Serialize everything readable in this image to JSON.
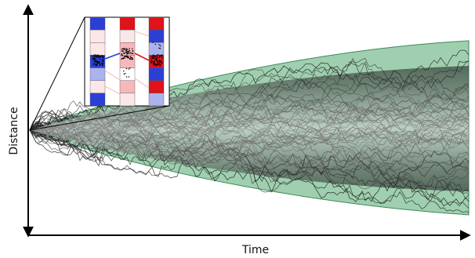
{
  "figure": {
    "xlabel": "Time",
    "ylabel": "Distance",
    "colors": {
      "envelope_fill": "#7fbf94",
      "envelope_edge": "#3c8a57",
      "trajectory_dark": "#000000",
      "axis": "#000000",
      "inset_blue": "#2b3fd6",
      "inset_red": "#e0121a",
      "inset_link_blue": "#1f3fe0",
      "inset_link_red": "#e01818"
    },
    "inset": {
      "description_icons": [
        "blue-red-chain-lattice",
        "particle-cluster"
      ]
    }
  }
}
